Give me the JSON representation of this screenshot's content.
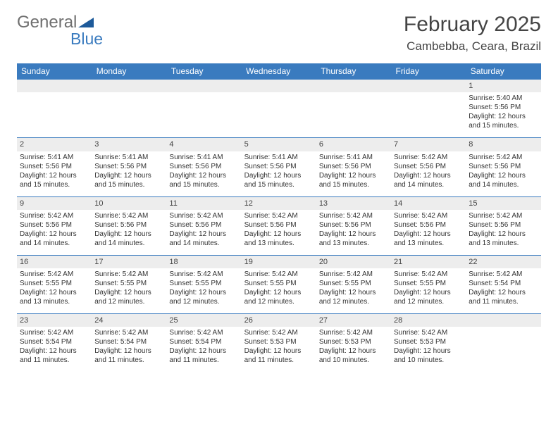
{
  "brand": {
    "part1": "General",
    "part2": "Blue",
    "triangle_color": "#1d5a9a"
  },
  "title": "February 2025",
  "location": "Cambebba, Ceara, Brazil",
  "colors": {
    "header_bg": "#3a7bbf",
    "daynum_bg": "#ededed",
    "rule": "#3a7bbf"
  },
  "day_labels": [
    "Sunday",
    "Monday",
    "Tuesday",
    "Wednesday",
    "Thursday",
    "Friday",
    "Saturday"
  ],
  "weeks": [
    [
      null,
      null,
      null,
      null,
      null,
      null,
      {
        "n": "1",
        "sunrise": "5:40 AM",
        "sunset": "5:56 PM",
        "daylight": "12 hours and 15 minutes."
      }
    ],
    [
      {
        "n": "2",
        "sunrise": "5:41 AM",
        "sunset": "5:56 PM",
        "daylight": "12 hours and 15 minutes."
      },
      {
        "n": "3",
        "sunrise": "5:41 AM",
        "sunset": "5:56 PM",
        "daylight": "12 hours and 15 minutes."
      },
      {
        "n": "4",
        "sunrise": "5:41 AM",
        "sunset": "5:56 PM",
        "daylight": "12 hours and 15 minutes."
      },
      {
        "n": "5",
        "sunrise": "5:41 AM",
        "sunset": "5:56 PM",
        "daylight": "12 hours and 15 minutes."
      },
      {
        "n": "6",
        "sunrise": "5:41 AM",
        "sunset": "5:56 PM",
        "daylight": "12 hours and 15 minutes."
      },
      {
        "n": "7",
        "sunrise": "5:42 AM",
        "sunset": "5:56 PM",
        "daylight": "12 hours and 14 minutes."
      },
      {
        "n": "8",
        "sunrise": "5:42 AM",
        "sunset": "5:56 PM",
        "daylight": "12 hours and 14 minutes."
      }
    ],
    [
      {
        "n": "9",
        "sunrise": "5:42 AM",
        "sunset": "5:56 PM",
        "daylight": "12 hours and 14 minutes."
      },
      {
        "n": "10",
        "sunrise": "5:42 AM",
        "sunset": "5:56 PM",
        "daylight": "12 hours and 14 minutes."
      },
      {
        "n": "11",
        "sunrise": "5:42 AM",
        "sunset": "5:56 PM",
        "daylight": "12 hours and 14 minutes."
      },
      {
        "n": "12",
        "sunrise": "5:42 AM",
        "sunset": "5:56 PM",
        "daylight": "12 hours and 13 minutes."
      },
      {
        "n": "13",
        "sunrise": "5:42 AM",
        "sunset": "5:56 PM",
        "daylight": "12 hours and 13 minutes."
      },
      {
        "n": "14",
        "sunrise": "5:42 AM",
        "sunset": "5:56 PM",
        "daylight": "12 hours and 13 minutes."
      },
      {
        "n": "15",
        "sunrise": "5:42 AM",
        "sunset": "5:56 PM",
        "daylight": "12 hours and 13 minutes."
      }
    ],
    [
      {
        "n": "16",
        "sunrise": "5:42 AM",
        "sunset": "5:55 PM",
        "daylight": "12 hours and 13 minutes."
      },
      {
        "n": "17",
        "sunrise": "5:42 AM",
        "sunset": "5:55 PM",
        "daylight": "12 hours and 12 minutes."
      },
      {
        "n": "18",
        "sunrise": "5:42 AM",
        "sunset": "5:55 PM",
        "daylight": "12 hours and 12 minutes."
      },
      {
        "n": "19",
        "sunrise": "5:42 AM",
        "sunset": "5:55 PM",
        "daylight": "12 hours and 12 minutes."
      },
      {
        "n": "20",
        "sunrise": "5:42 AM",
        "sunset": "5:55 PM",
        "daylight": "12 hours and 12 minutes."
      },
      {
        "n": "21",
        "sunrise": "5:42 AM",
        "sunset": "5:55 PM",
        "daylight": "12 hours and 12 minutes."
      },
      {
        "n": "22",
        "sunrise": "5:42 AM",
        "sunset": "5:54 PM",
        "daylight": "12 hours and 11 minutes."
      }
    ],
    [
      {
        "n": "23",
        "sunrise": "5:42 AM",
        "sunset": "5:54 PM",
        "daylight": "12 hours and 11 minutes."
      },
      {
        "n": "24",
        "sunrise": "5:42 AM",
        "sunset": "5:54 PM",
        "daylight": "12 hours and 11 minutes."
      },
      {
        "n": "25",
        "sunrise": "5:42 AM",
        "sunset": "5:54 PM",
        "daylight": "12 hours and 11 minutes."
      },
      {
        "n": "26",
        "sunrise": "5:42 AM",
        "sunset": "5:53 PM",
        "daylight": "12 hours and 11 minutes."
      },
      {
        "n": "27",
        "sunrise": "5:42 AM",
        "sunset": "5:53 PM",
        "daylight": "12 hours and 10 minutes."
      },
      {
        "n": "28",
        "sunrise": "5:42 AM",
        "sunset": "5:53 PM",
        "daylight": "12 hours and 10 minutes."
      },
      null
    ]
  ],
  "labels": {
    "sunrise": "Sunrise: ",
    "sunset": "Sunset: ",
    "daylight": "Daylight: "
  }
}
